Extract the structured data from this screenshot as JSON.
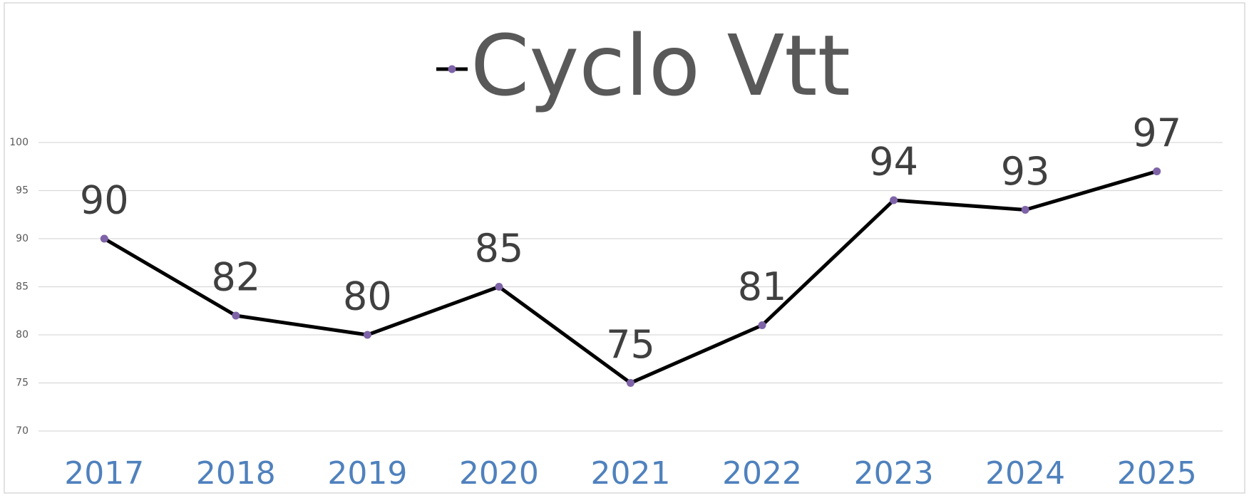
{
  "chart_data": {
    "type": "line",
    "categories": [
      "2017",
      "2018",
      "2019",
      "2020",
      "2021",
      "2022",
      "2023",
      "2024",
      "2025"
    ],
    "series": [
      {
        "name": "Cyclo Vtt",
        "color": "#000000",
        "marker_color": "#7f63a8",
        "values": [
          90,
          82,
          80,
          85,
          75,
          81,
          94,
          93,
          97
        ]
      }
    ],
    "ylim": [
      70,
      100
    ],
    "yticks": [
      70,
      75,
      80,
      85,
      90,
      95,
      100
    ],
    "grid": true,
    "legend": "top",
    "data_labels": true
  }
}
